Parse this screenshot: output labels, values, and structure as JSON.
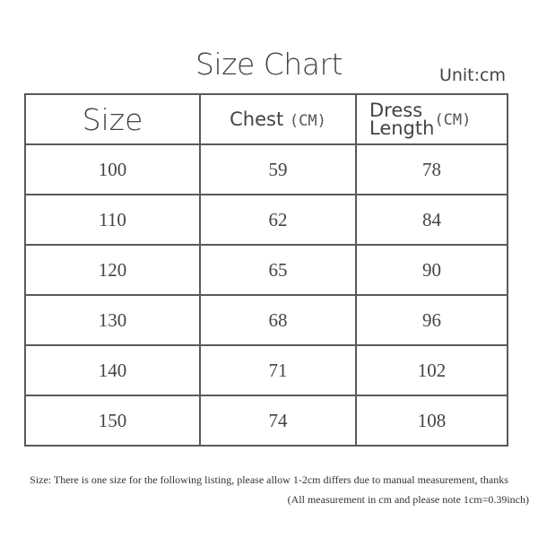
{
  "title": "Size Chart",
  "unit": "Unit:cm",
  "headers": {
    "size": "Size",
    "chest": "Chest",
    "chest_unit": "(CM)",
    "dress_line1": "Dress",
    "dress_line2": "Length",
    "dress_unit": "(CM)"
  },
  "rows": [
    {
      "size": "100",
      "chest": "59",
      "length": "78"
    },
    {
      "size": "110",
      "chest": "62",
      "length": "84"
    },
    {
      "size": "120",
      "chest": "65",
      "length": "90"
    },
    {
      "size": "130",
      "chest": "68",
      "length": "96"
    },
    {
      "size": "140",
      "chest": "71",
      "length": "102"
    },
    {
      "size": "150",
      "chest": "74",
      "length": "108"
    }
  ],
  "notes": {
    "line1": "Size: There is one size for the following listing, please allow 1-2cm differs due to manual measurement, thanks",
    "line2": "(All measurement in cm and please note 1cm=0.39inch)"
  }
}
